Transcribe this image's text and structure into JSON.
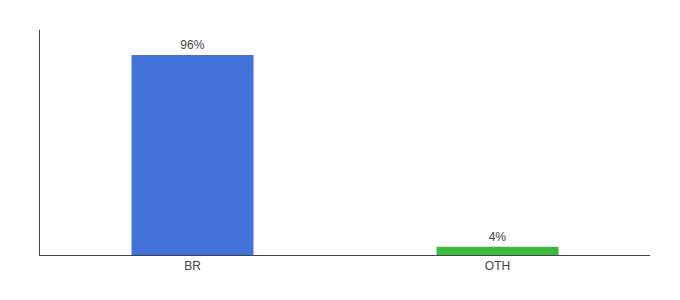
{
  "chart_data": {
    "type": "bar",
    "categories": [
      "BR",
      "OTH"
    ],
    "values": [
      96,
      4
    ],
    "value_labels": [
      "96%",
      "4%"
    ],
    "colors": [
      "#4472db",
      "#3dba3d"
    ],
    "ylim": [
      0,
      108
    ],
    "data_labels": true,
    "tick_labels": "x",
    "grid": false
  }
}
